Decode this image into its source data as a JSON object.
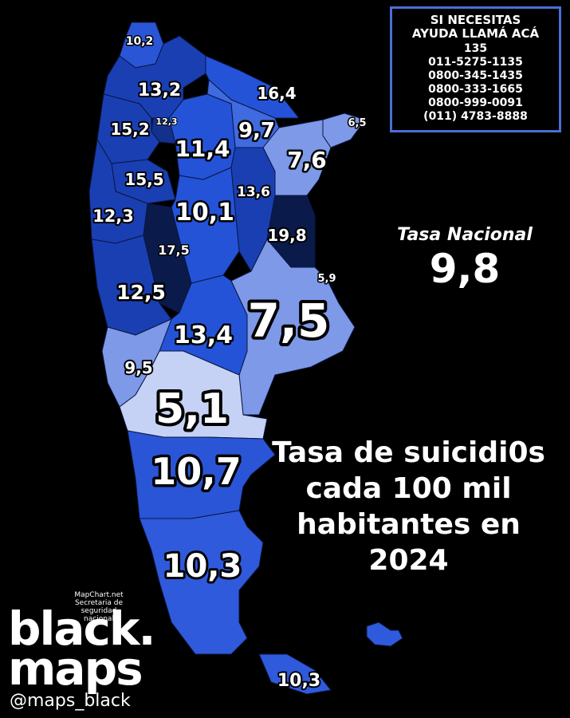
{
  "help_box": {
    "title_line1": "SI NECESITAS",
    "title_line2": "AYUDA LLAMÁ ACÁ",
    "numbers": [
      "135",
      "011-5275-1135",
      "0800-345-1435",
      "0800-333-1665",
      "0800-999-0091",
      "(011) 4783-8888"
    ]
  },
  "national_rate": {
    "label": "Tasa Nacional",
    "value": "9,8"
  },
  "headline": [
    "Tasa de suicidi0s",
    "cada 100 mil",
    "habitantes en",
    "2024"
  ],
  "credits": [
    "MapChart.net",
    "Secretaria de",
    "seguridad nacional"
  ],
  "brand": {
    "line1": "black.",
    "line2": "maps",
    "handle": "@maps_black"
  },
  "colors": {
    "background": "#000000",
    "help_border": "#4a6fd4",
    "shade_lightest": "#c6d2f5",
    "shade_light": "#7d99e8",
    "shade_mid_light": "#3f6ae0",
    "shade_mid": "#2453d8",
    "shade_dark": "#1a3fb3",
    "shade_darker": "#13308c",
    "shade_darkest": "#0a1a4a"
  },
  "province_rates": [
    {
      "id": "jujuy",
      "value": "10,2"
    },
    {
      "id": "salta",
      "value": "13,2"
    },
    {
      "id": "formosa",
      "value": "16,4"
    },
    {
      "id": "chaco",
      "value": "9,7"
    },
    {
      "id": "misiones",
      "value": "6,5"
    },
    {
      "id": "tucuman",
      "value": "12,3"
    },
    {
      "id": "catamarca",
      "value": "15,2"
    },
    {
      "id": "santiago-del-estero",
      "value": "11,4"
    },
    {
      "id": "corrientes",
      "value": "7,6"
    },
    {
      "id": "la-rioja",
      "value": "15,5"
    },
    {
      "id": "santa-fe",
      "value": "13,6"
    },
    {
      "id": "san-juan",
      "value": "12,3"
    },
    {
      "id": "cordoba",
      "value": "10,1"
    },
    {
      "id": "entre-rios",
      "value": "19,8"
    },
    {
      "id": "san-luis",
      "value": "17,5"
    },
    {
      "id": "caba",
      "value": "5,9"
    },
    {
      "id": "mendoza",
      "value": "12,5"
    },
    {
      "id": "buenos-aires",
      "value": "7,5"
    },
    {
      "id": "la-pampa",
      "value": "13,4"
    },
    {
      "id": "neuquen",
      "value": "9,5"
    },
    {
      "id": "rio-negro",
      "value": "5,1"
    },
    {
      "id": "chubut",
      "value": "10,7"
    },
    {
      "id": "santa-cruz",
      "value": "10,3"
    },
    {
      "id": "tierra-del-fuego",
      "value": "10,3"
    }
  ]
}
